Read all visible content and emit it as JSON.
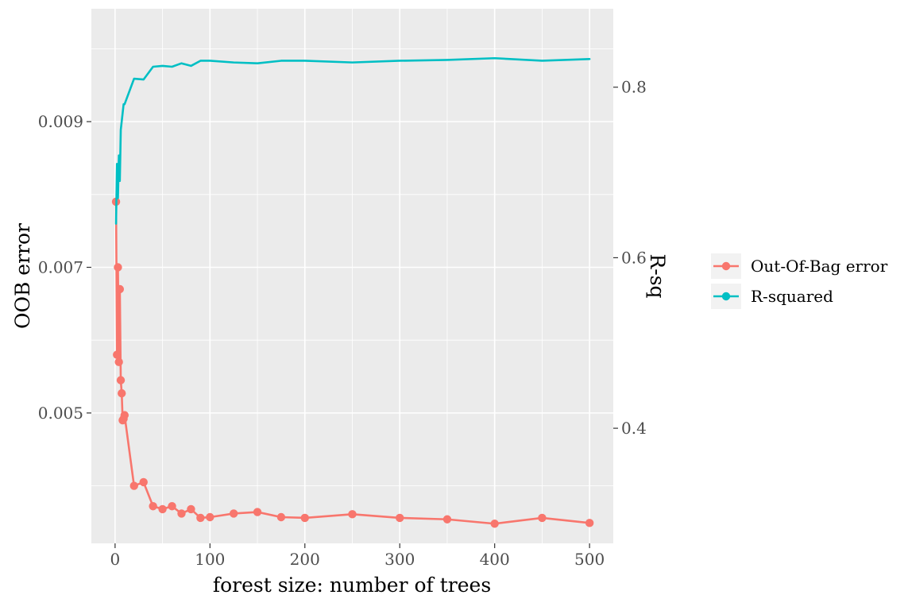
{
  "chart_data": {
    "type": "line",
    "xlabel": "forest size: number of trees",
    "ylabel_left": "OOB error",
    "ylabel_right": "R-sq",
    "x_ticks": [
      0,
      100,
      200,
      300,
      400,
      500
    ],
    "y_left_ticks": [
      0.005,
      0.007,
      0.009
    ],
    "y_left_tick_labels": [
      "0.005",
      "0.007",
      "0.009"
    ],
    "y_right_ticks": [
      0.4,
      0.6,
      0.8
    ],
    "y_right_tick_labels": [
      "0.4",
      "0.6",
      "0.8"
    ],
    "xlim": [
      -25,
      525
    ],
    "ylim_left": [
      0.00321,
      0.01055
    ],
    "ylim_right": [
      0.265,
      0.892
    ],
    "grid": true,
    "legend_position": "right",
    "series": [
      {
        "name": "Out-Of-Bag error",
        "axis": "left",
        "color": "#F8766D",
        "markers": true,
        "x": [
          1,
          2,
          3,
          4,
          5,
          6,
          7,
          8,
          9,
          10,
          20,
          30,
          40,
          50,
          60,
          70,
          80,
          90,
          100,
          125,
          150,
          175,
          200,
          250,
          300,
          350,
          400,
          450,
          500
        ],
        "y": [
          0.0079,
          0.0058,
          0.007,
          0.0057,
          0.0067,
          0.00545,
          0.00527,
          0.0049,
          0.00492,
          0.00497,
          0.004,
          0.00405,
          0.00372,
          0.00368,
          0.00372,
          0.00362,
          0.00368,
          0.00356,
          0.00357,
          0.00362,
          0.00364,
          0.00357,
          0.00356,
          0.00361,
          0.00356,
          0.00354,
          0.00348,
          0.00356,
          0.00349
        ]
      },
      {
        "name": "R-squared",
        "axis": "right",
        "color": "#00BFC4",
        "markers": false,
        "x": [
          1,
          2,
          3,
          4,
          5,
          6,
          7,
          8,
          9,
          10,
          20,
          30,
          40,
          50,
          60,
          70,
          80,
          90,
          100,
          125,
          150,
          175,
          200,
          250,
          300,
          350,
          400,
          450,
          500
        ],
        "y": [
          0.64,
          0.71,
          0.67,
          0.72,
          0.69,
          0.75,
          0.76,
          0.77,
          0.78,
          0.78,
          0.81,
          0.809,
          0.824,
          0.825,
          0.824,
          0.828,
          0.825,
          0.831,
          0.831,
          0.829,
          0.828,
          0.831,
          0.831,
          0.829,
          0.831,
          0.832,
          0.834,
          0.831,
          0.833
        ]
      }
    ]
  }
}
